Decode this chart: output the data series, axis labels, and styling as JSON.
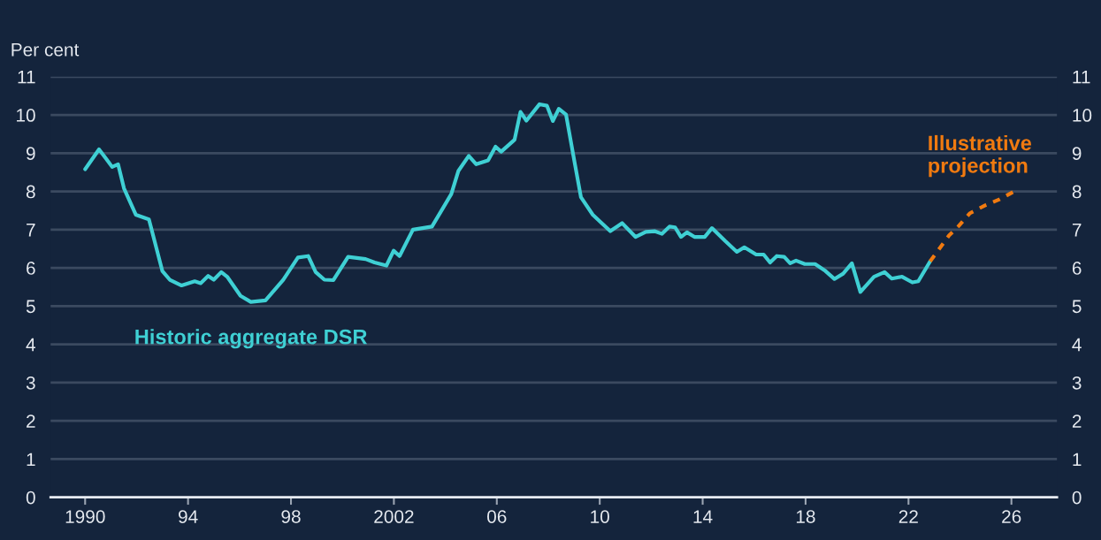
{
  "chart_data": {
    "type": "line",
    "ylabel": "Per cent",
    "xlim": [
      1988.66,
      2027.77
    ],
    "xticks": [
      {
        "value": 1990,
        "label": "1990"
      },
      {
        "value": 1994,
        "label": "94"
      },
      {
        "value": 1998,
        "label": "98"
      },
      {
        "value": 2002,
        "label": "2002"
      },
      {
        "value": 2006,
        "label": "06"
      },
      {
        "value": 2010,
        "label": "10"
      },
      {
        "value": 2014,
        "label": "14"
      },
      {
        "value": 2018,
        "label": "18"
      },
      {
        "value": 2022,
        "label": "22"
      },
      {
        "value": 2026,
        "label": "26"
      }
    ],
    "ylim": [
      0,
      11
    ],
    "yticks": [
      0,
      1,
      2,
      3,
      4,
      5,
      6,
      7,
      8,
      9,
      10,
      11
    ],
    "y2lim": [
      0,
      11
    ],
    "y2ticks": [
      0,
      1,
      2,
      3,
      4,
      5,
      6,
      7,
      8,
      9,
      10,
      11
    ],
    "grid": "y",
    "legend": false,
    "marker": "none",
    "series": [
      {
        "name": "Historic aggregate DSR",
        "color": "#3fd0d4",
        "line_style": "solid",
        "x": [
          1990.0,
          1990.54,
          1990.82,
          1991.05,
          1991.28,
          1991.51,
          1991.97,
          1992.48,
          1993.0,
          1993.29,
          1993.75,
          1994.26,
          1994.49,
          1994.78,
          1995.0,
          1995.29,
          1995.52,
          1996.04,
          1996.44,
          1997.01,
          1997.7,
          1998.27,
          1998.67,
          1998.96,
          1999.3,
          1999.65,
          2000.22,
          2000.9,
          2001.25,
          2001.71,
          2001.99,
          2002.22,
          2002.74,
          2003.48,
          2004.23,
          2004.51,
          2004.91,
          2005.2,
          2005.66,
          2005.95,
          2006.17,
          2006.69,
          2006.92,
          2007.15,
          2007.66,
          2007.95,
          2008.18,
          2008.41,
          2008.69,
          2009.04,
          2009.27,
          2009.73,
          2010.41,
          2010.87,
          2011.39,
          2011.79,
          2012.13,
          2012.42,
          2012.71,
          2012.93,
          2013.16,
          2013.39,
          2013.68,
          2014.08,
          2014.36,
          2014.88,
          2015.33,
          2015.62,
          2016.08,
          2016.37,
          2016.62,
          2016.88,
          2017.17,
          2017.4,
          2017.63,
          2017.97,
          2018.37,
          2018.77,
          2019.12,
          2019.46,
          2019.8,
          2020.13,
          2020.66,
          2021.07,
          2021.35,
          2021.75,
          2022.15,
          2022.38,
          2022.84
        ],
        "values": [
          8.58,
          9.1,
          8.85,
          8.64,
          8.71,
          8.08,
          7.39,
          7.27,
          5.92,
          5.69,
          5.54,
          5.65,
          5.6,
          5.79,
          5.69,
          5.89,
          5.77,
          5.27,
          5.11,
          5.15,
          5.69,
          6.27,
          6.31,
          5.89,
          5.69,
          5.68,
          6.29,
          6.23,
          6.14,
          6.06,
          6.45,
          6.31,
          7.0,
          7.08,
          7.93,
          8.54,
          8.93,
          8.71,
          8.81,
          9.17,
          9.04,
          9.35,
          10.08,
          9.85,
          10.28,
          10.24,
          9.84,
          10.16,
          10.01,
          8.7,
          7.85,
          7.39,
          6.96,
          7.17,
          6.81,
          6.94,
          6.96,
          6.89,
          7.08,
          7.06,
          6.81,
          6.93,
          6.81,
          6.81,
          7.04,
          6.7,
          6.42,
          6.54,
          6.35,
          6.35,
          6.14,
          6.31,
          6.29,
          6.12,
          6.19,
          6.1,
          6.1,
          5.92,
          5.71,
          5.85,
          6.12,
          5.37,
          5.77,
          5.89,
          5.72,
          5.77,
          5.62,
          5.65,
          6.17
        ]
      },
      {
        "name": "Illustrative projection",
        "color": "#f07a10",
        "line_style": "dotted",
        "x": [
          2022.84,
          2023.58,
          2023.93,
          2024.39,
          2024.96,
          2025.53,
          2026.08
        ],
        "values": [
          6.17,
          6.85,
          7.08,
          7.43,
          7.63,
          7.79,
          7.99
        ]
      }
    ]
  }
}
